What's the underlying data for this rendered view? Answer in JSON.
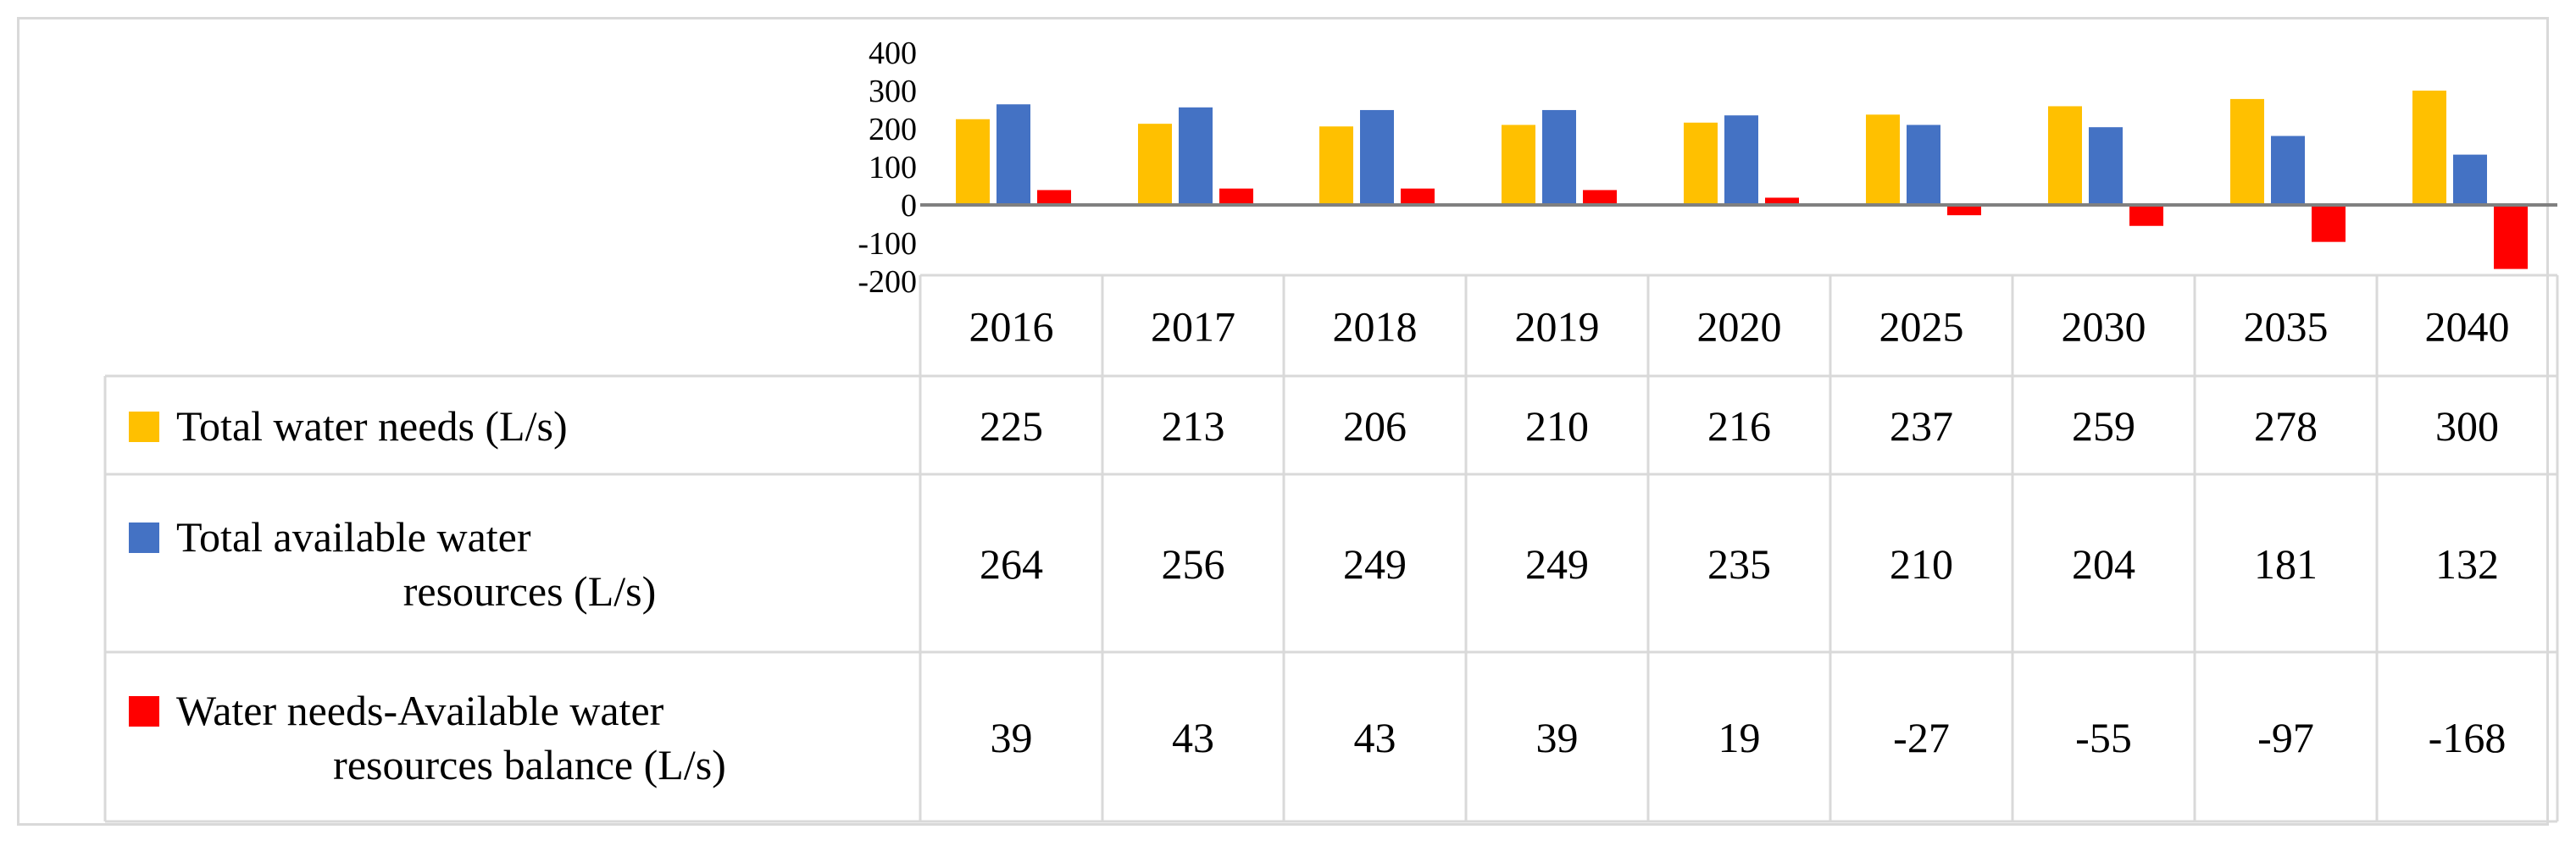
{
  "chart_data": {
    "type": "bar",
    "categories": [
      "2016",
      "2017",
      "2018",
      "2019",
      "2020",
      "2025",
      "2030",
      "2035",
      "2040"
    ],
    "ylim": [
      -200,
      400
    ],
    "yticks": [
      "400",
      "300",
      "200",
      "100",
      "0",
      "-100",
      "-200"
    ],
    "ytick_values": [
      400,
      300,
      200,
      100,
      0,
      -100,
      -200
    ],
    "grid": false,
    "legend_position": "data-table",
    "series": [
      {
        "name": "Total water needs (L/s)",
        "label_lines": [
          "Total water needs (L/s)"
        ],
        "color": "#FFC000",
        "values": [
          225,
          213,
          206,
          210,
          216,
          237,
          259,
          278,
          300
        ],
        "value_labels": [
          "225",
          "213",
          "206",
          "210",
          "216",
          "237",
          "259",
          "278",
          "300"
        ]
      },
      {
        "name": "Total available water resources (L/s)",
        "label_lines": [
          "Total available water",
          "resources  (L/s)"
        ],
        "color": "#4472C4",
        "values": [
          264,
          256,
          249,
          249,
          235,
          210,
          204,
          181,
          132
        ],
        "value_labels": [
          "264",
          "256",
          "249",
          "249",
          "235",
          "210",
          "204",
          "181",
          "132"
        ]
      },
      {
        "name": "Water needs-Available water resources balance (L/s)",
        "label_lines": [
          "Water needs-Available water",
          "resources balance (L/s)"
        ],
        "color": "#FF0000",
        "values": [
          39,
          43,
          43,
          39,
          19,
          -27,
          -55,
          -97,
          -168
        ],
        "value_labels": [
          "39",
          "43",
          "43",
          "39",
          "19",
          "-27",
          "-55",
          "-97",
          "-168"
        ]
      }
    ]
  }
}
